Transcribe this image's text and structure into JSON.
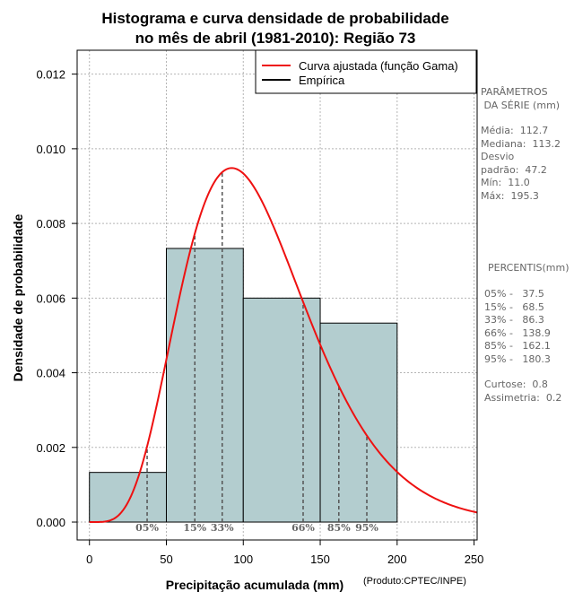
{
  "chart_data": {
    "type": "bar",
    "title_line1": "Histograma e curva densidade de probabilidade",
    "title_line2": "no mês de abril (1981-2010): Região 73",
    "xlabel": "Precipitação acumulada (mm)",
    "ylabel": "Densidade de probabilidade",
    "credit": "(Produto:CPTEC/INPE)",
    "xlim": [
      -8,
      252
    ],
    "ylim": [
      -0.00048,
      0.01264
    ],
    "x_ticks": [
      0,
      50,
      100,
      150,
      200,
      250
    ],
    "x_tick_labels": [
      "0",
      "50",
      "100",
      "150",
      "200",
      "250"
    ],
    "y_ticks": [
      0.0,
      0.002,
      0.004,
      0.006,
      0.008,
      0.01,
      0.012
    ],
    "y_tick_labels": [
      "0.000",
      "0.002",
      "0.004",
      "0.006",
      "0.008",
      "0.010",
      "0.012"
    ],
    "grid": true,
    "bins": [
      {
        "start": 0,
        "end": 50,
        "density": 0.00133
      },
      {
        "start": 50,
        "end": 100,
        "density": 0.00733
      },
      {
        "start": 100,
        "end": 150,
        "density": 0.006
      },
      {
        "start": 150,
        "end": 200,
        "density": 0.00533
      }
    ],
    "gamma_fit": {
      "name": "Curva ajustada (função Gama)",
      "shape": 6.0,
      "scale": 18.5,
      "color": "#ee1111"
    },
    "empirical_name": "Empírica",
    "legend_position": "top-right",
    "percentiles": [
      {
        "label": "05%",
        "value": 37.5
      },
      {
        "label": "15%",
        "value": 68.5
      },
      {
        "label": "33%",
        "value": 86.3
      },
      {
        "label": "66%",
        "value": 138.9
      },
      {
        "label": "85%",
        "value": 162.1
      },
      {
        "label": "95%",
        "value": 180.3
      }
    ],
    "bar_color": "#b3cdcf"
  },
  "stats": {
    "header": "PARÂMETROS\n DA SÉRIE (mm)",
    "lines": "Média:  112.7\nMediana:  113.2\nDesvio\npadrão:  47.2\nMín:  11.0\nMáx:  195.3"
  },
  "percentile_panel": {
    "header": "PERCENTIS(mm)",
    "lines": "05% -   37.5\n15% -   68.5\n33% -   86.3\n66% -   138.9\n85% -   162.1\n95% -   180.3",
    "shape_lines": "Curtose:  0.8\nAssimetria:  0.2"
  }
}
